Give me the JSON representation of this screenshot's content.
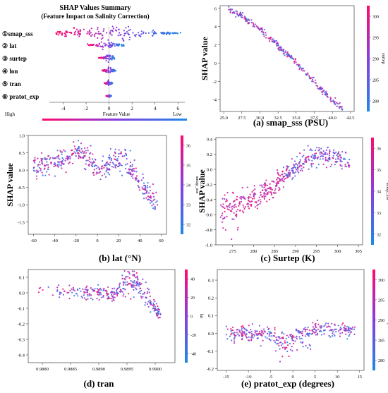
{
  "colors": {
    "high": "#ff0a6c",
    "mid": "#8a3ce0",
    "low": "#1e88e5",
    "axis": "#222222"
  },
  "summary": {
    "title": "SHAP Values Summary",
    "subtitle": "(Feature Impact on Salinity Correction)",
    "features": [
      "①smap_sss",
      "② lat",
      "③ surtep",
      "④ lon",
      "⑤ tran",
      "⑥ pratot_exp"
    ],
    "xticks": [
      "-4",
      "-2",
      "0",
      "2",
      "4",
      "6"
    ],
    "legend_high": "High",
    "legend_mid": "Feature Value",
    "legend_low": "Low"
  },
  "chart_data": [
    {
      "type": "scatter",
      "id": "a",
      "caption": "(a) smap_sss (PSU)",
      "ylabel": "SHAP value",
      "xlim": [
        24.5,
        43
      ],
      "ylim": [
        -5.3,
        6.3
      ],
      "xticks": [
        "25.0",
        "27.5",
        "30.0",
        "32.5",
        "35.0",
        "37.5",
        "40.0",
        "42.5"
      ],
      "yticks": [
        "-4",
        "-2",
        "0",
        "2",
        "4",
        "6"
      ],
      "colorbar": {
        "label": "surtep",
        "ticks": [
          "280",
          "285",
          "290",
          "295",
          "300"
        ]
      },
      "trend": [
        [
          25.6,
          5.9
        ],
        [
          27.5,
          5.2
        ],
        [
          30,
          3.7
        ],
        [
          32.5,
          1.9
        ],
        [
          35,
          0.1
        ],
        [
          37.5,
          -2.1
        ],
        [
          40,
          -4.2
        ],
        [
          41.5,
          -5.0
        ]
      ]
    },
    {
      "type": "scatter",
      "id": "b",
      "caption": "(b) lat (°N)",
      "ylabel": "SHAP value",
      "xlim": [
        -65,
        65
      ],
      "ylim": [
        -1.85,
        1.0
      ],
      "xticks": [
        "-60",
        "-40",
        "-20",
        "0",
        "20",
        "40",
        "60"
      ],
      "yticks": [
        "-1.5",
        "-1.0",
        "-0.5",
        "0.0",
        "0.5",
        "1.0"
      ],
      "colorbar": {
        "label": "smap_sss",
        "ticks": [
          "32",
          "33",
          "34",
          "35",
          "36"
        ]
      },
      "trend": [
        [
          -60,
          0.15
        ],
        [
          -40,
          0.2
        ],
        [
          -30,
          0.3
        ],
        [
          -20,
          0.6
        ],
        [
          -10,
          0.35
        ],
        [
          0,
          0.05
        ],
        [
          10,
          0.1
        ],
        [
          20,
          0.3
        ],
        [
          25,
          0.3
        ],
        [
          30,
          0.05
        ],
        [
          40,
          -0.35
        ],
        [
          50,
          -0.8
        ],
        [
          57,
          -0.9
        ]
      ]
    },
    {
      "type": "scatter",
      "id": "c",
      "caption": "(c) Surtep (K)",
      "ylabel": "SHAP value",
      "xlim": [
        271,
        306
      ],
      "ylim": [
        -1.0,
        0.42
      ],
      "xticks": [
        "275",
        "280",
        "285",
        "290",
        "295",
        "300",
        "305"
      ],
      "yticks": [
        "-1.0",
        "-0.8",
        "-0.6",
        "-0.4",
        "-0.2",
        "0.0",
        "0.2",
        "0.4"
      ],
      "colorbar": {
        "label": "smap_sss",
        "ticks": [
          "32",
          "33",
          "34",
          "35",
          "36"
        ]
      },
      "trend": [
        [
          272,
          -0.45
        ],
        [
          275,
          -0.38
        ],
        [
          280,
          -0.32
        ],
        [
          285,
          -0.2
        ],
        [
          288,
          -0.05
        ],
        [
          292,
          0.12
        ],
        [
          296,
          0.2
        ],
        [
          300,
          0.15
        ],
        [
          303,
          0.08
        ]
      ]
    },
    {
      "type": "scatter",
      "id": "d",
      "caption": "(d) tran",
      "ylabel": "",
      "xlim": [
        0.98775,
        0.99035
      ],
      "ylim": [
        -0.45,
        0.15
      ],
      "xticks": [
        "0.9880",
        "0.9885",
        "0.9890",
        "0.9895",
        "0.9900"
      ],
      "yticks": [
        "-0.4",
        "-0.3",
        "-0.2",
        "-0.1",
        "0.0",
        "0.1"
      ],
      "colorbar": {
        "label": "lat",
        "ticks": [
          "-40",
          "-20",
          "0",
          "20",
          "40"
        ]
      },
      "trend": [
        [
          0.9878,
          0.01
        ],
        [
          0.9885,
          0.005
        ],
        [
          0.989,
          0.0
        ],
        [
          0.9893,
          0.0
        ],
        [
          0.98955,
          0.08
        ],
        [
          0.9897,
          0.06
        ],
        [
          0.9899,
          -0.05
        ],
        [
          0.9901,
          -0.15
        ]
      ]
    },
    {
      "type": "scatter",
      "id": "e",
      "caption": "(e) pratot_exp (degrees)",
      "ylabel": "",
      "xlim": [
        -17,
        16
      ],
      "ylim": [
        -0.21,
        0.36
      ],
      "xticks": [
        "-15",
        "-10",
        "-5",
        "0",
        "5",
        "10",
        "15"
      ],
      "yticks": [
        "-0.2",
        "-0.1",
        "0.0",
        "0.1",
        "0.2",
        "0.3"
      ],
      "colorbar": {
        "label": "surtep",
        "ticks": [
          "280",
          "285",
          "290",
          "295",
          "300"
        ]
      },
      "trend": [
        [
          -15,
          0.0
        ],
        [
          -10,
          0.0
        ],
        [
          -5,
          0.0
        ],
        [
          -2,
          -0.02
        ],
        [
          0,
          0.0
        ],
        [
          2,
          0.04
        ],
        [
          5,
          0.02
        ],
        [
          10,
          0.02
        ],
        [
          14,
          0.02
        ]
      ]
    }
  ]
}
